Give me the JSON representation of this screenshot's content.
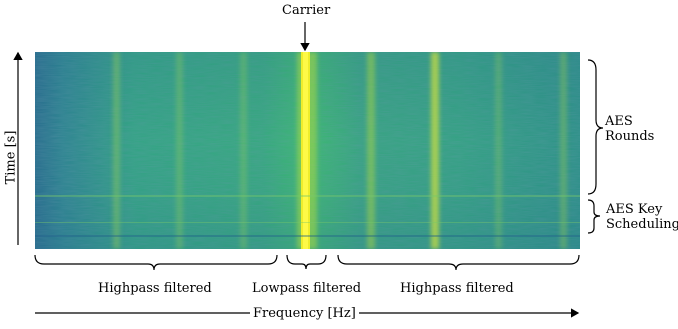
{
  "figure": {
    "carrier_label": "Carrier",
    "time_axis_label": "Time [s]",
    "frequency_axis_label": "Frequency [Hz]",
    "regions": {
      "aes_rounds": "AES\nRounds",
      "aes_key_scheduling": "AES Key\nScheduling"
    },
    "filters": {
      "left": "Highpass filtered",
      "center": "Lowpass filtered",
      "right": "Highpass filtered"
    }
  },
  "colors": {
    "background_low": "#2a6f8e",
    "background_mid": "#2f9a84",
    "background_high": "#3fbf6f",
    "carrier_line": "#f4ef2a",
    "harmonic_line": "#b8dd3a",
    "axis": "#000000"
  }
}
